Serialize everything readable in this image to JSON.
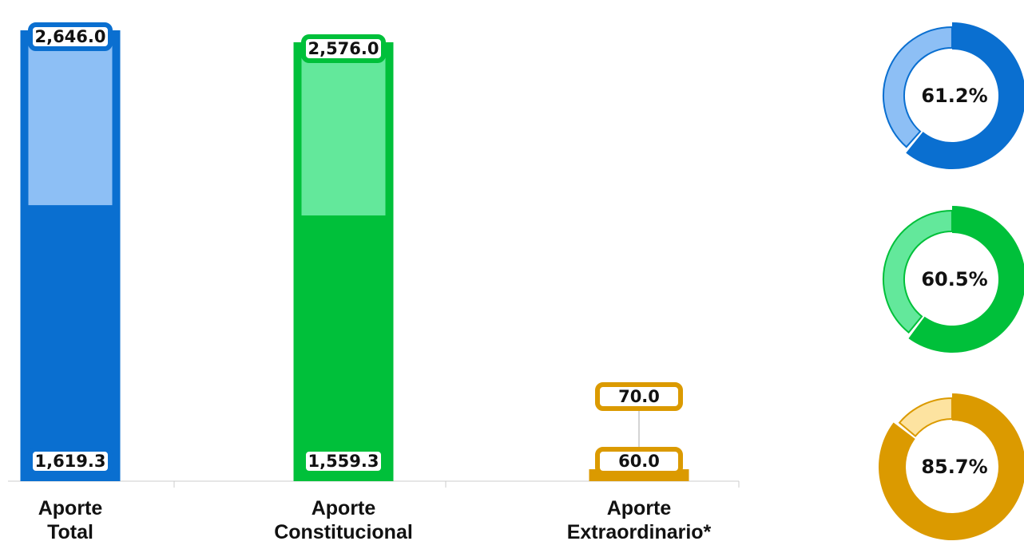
{
  "chart_data": {
    "type": "bar",
    "categories": [
      "Aporte Total",
      "Aporte Constitucional",
      "Aporte Extraordinario*"
    ],
    "series": [
      {
        "colors": [
          "#0a6fd0",
          "#00c03a",
          "#db9a00"
        ],
        "values": [
          2646.0,
          2576.0,
          70.0
        ],
        "value_labels": [
          "2,646.0",
          "2,576.0",
          "70.0"
        ]
      },
      {
        "colors": [
          "#0a6fd0",
          "#00c03a",
          "#db9a00"
        ],
        "values": [
          1619.3,
          1559.3,
          60.0
        ],
        "value_labels": [
          "1,619.3",
          "1,559.3",
          "60.0"
        ]
      }
    ],
    "light_colors": [
      "#8dbff5",
      "#63e89b",
      "#fde3a0"
    ],
    "donut": {
      "type": "pie",
      "values": [
        61.2,
        60.5,
        85.7
      ],
      "value_labels": [
        "61.2%",
        "60.5%",
        "85.7%"
      ]
    }
  }
}
